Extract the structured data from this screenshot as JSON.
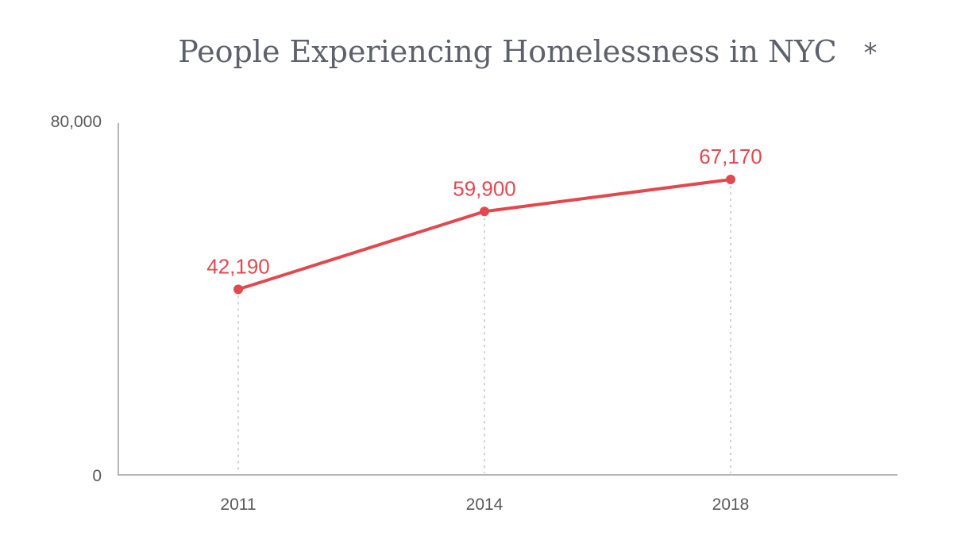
{
  "chart_data": {
    "type": "line",
    "title": "People Experiencing Homelessness in NYC",
    "title_marker": "*",
    "x": [
      "2011",
      "2014",
      "2018"
    ],
    "series": [
      {
        "values": [
          42190,
          59900,
          67170
        ],
        "data_labels": [
          "42,190",
          "59,900",
          "67,170"
        ],
        "color": "#e0494f"
      }
    ],
    "ylim": [
      0,
      80000
    ],
    "y_tick_labels": [
      "0",
      "80,000"
    ],
    "grid": false,
    "legend": "none"
  },
  "colors": {
    "series": "#e0494f",
    "axis": "#b5b5b5",
    "text": "#5d6169"
  }
}
